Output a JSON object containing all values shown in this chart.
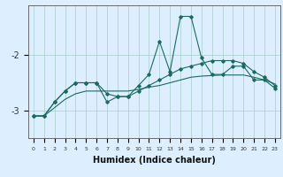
{
  "xlabel": "Humidex (Indice chaleur)",
  "bg_color": "#ddeeff",
  "line_color": "#1a6b5e",
  "grid_color": "#aacccc",
  "x_values": [
    0,
    1,
    2,
    3,
    4,
    5,
    6,
    7,
    8,
    9,
    10,
    11,
    12,
    13,
    14,
    15,
    16,
    17,
    18,
    19,
    20,
    21,
    22,
    23
  ],
  "series1": [
    -3.1,
    -3.1,
    -2.85,
    -2.65,
    -2.5,
    -2.5,
    -2.5,
    -2.7,
    -2.75,
    -2.75,
    -2.55,
    -2.35,
    -1.75,
    -2.3,
    -1.3,
    -1.3,
    -2.05,
    -2.35,
    -2.35,
    -2.2,
    -2.2,
    -2.45,
    -2.45,
    -2.6
  ],
  "series2": [
    -3.1,
    -3.1,
    -2.85,
    -2.65,
    -2.5,
    -2.5,
    -2.5,
    -2.85,
    -2.75,
    -2.75,
    -2.65,
    -2.55,
    -2.45,
    -2.35,
    -2.25,
    -2.2,
    -2.15,
    -2.1,
    -2.1,
    -2.1,
    -2.15,
    -2.3,
    -2.4,
    -2.55
  ],
  "series3": [
    -3.1,
    -3.1,
    -2.95,
    -2.8,
    -2.7,
    -2.65,
    -2.65,
    -2.65,
    -2.65,
    -2.65,
    -2.62,
    -2.58,
    -2.55,
    -2.5,
    -2.45,
    -2.4,
    -2.38,
    -2.37,
    -2.36,
    -2.36,
    -2.36,
    -2.4,
    -2.45,
    -2.52
  ],
  "ylim": [
    -3.5,
    -1.1
  ],
  "yticks": [
    -3.0,
    -2.0
  ],
  "xlim": [
    -0.5,
    23.5
  ]
}
